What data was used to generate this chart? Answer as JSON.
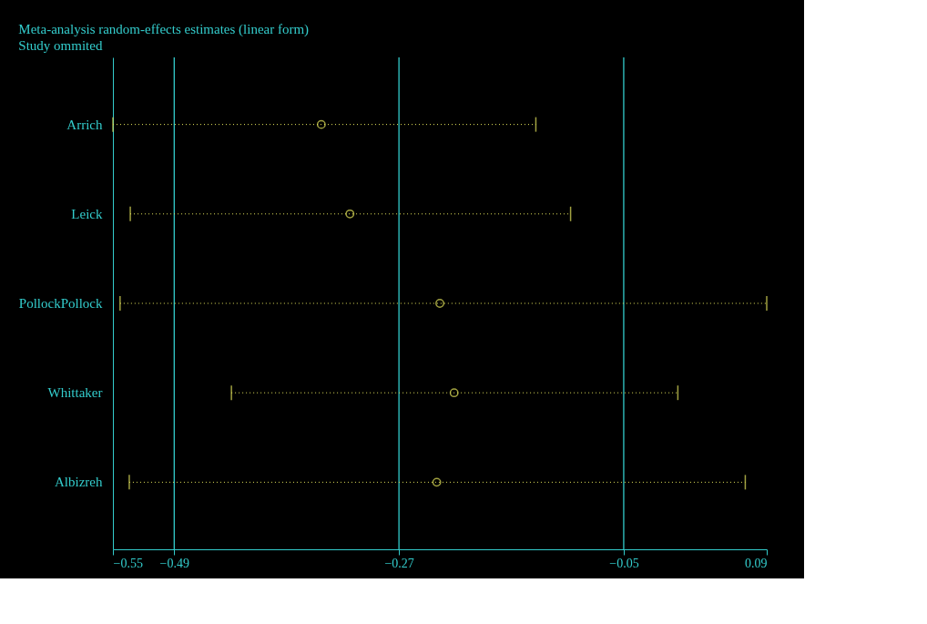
{
  "chart_data": {
    "type": "scatter",
    "orientation": "horizontal",
    "title": "Meta-analysis random-effects estimates (linear form)",
    "subtitle": "Study ommited",
    "categories": [
      "Arrich",
      "Leick",
      "PollockPollock",
      "Whittaker",
      "Albizreh"
    ],
    "series": [
      {
        "color": "#e6e65c",
        "values": [
          -0.346,
          -0.318,
          -0.23,
          -0.216,
          -0.233
        ],
        "errors": [
          [
            -0.55,
            -0.136
          ],
          [
            -0.533,
            -0.102
          ],
          [
            -0.543,
            0.09
          ],
          [
            -0.434,
            0.003
          ],
          [
            -0.534,
            0.069
          ]
        ]
      }
    ],
    "xlim": [
      -0.55,
      0.09
    ],
    "xticks": [
      -0.55,
      -0.49,
      -0.27,
      -0.05,
      0.09
    ],
    "ref_lines": [
      {
        "axis": "x",
        "value": -0.49,
        "color": "#33cccc"
      },
      {
        "axis": "x",
        "value": -0.27,
        "color": "#33cccc"
      },
      {
        "axis": "x",
        "value": -0.05,
        "color": "#33cccc"
      }
    ],
    "marker": "circle",
    "line_style": "dotted",
    "grid": false
  }
}
